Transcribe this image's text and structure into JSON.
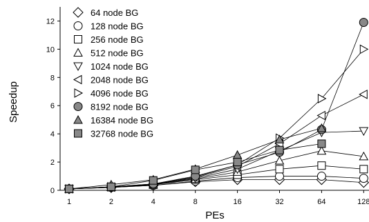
{
  "chart_data": {
    "type": "line",
    "title": "",
    "xlabel": "PEs",
    "ylabel": "Speedup",
    "x_scale": "log2",
    "x": [
      1,
      2,
      4,
      8,
      16,
      32,
      64,
      128
    ],
    "x_tick_labels": [
      "1",
      "2",
      "4",
      "8",
      "16",
      "32",
      "64",
      "128"
    ],
    "ylim": [
      0,
      13
    ],
    "y_ticks": [
      0,
      2,
      4,
      6,
      8,
      10,
      12
    ],
    "y_tick_labels": [
      "0",
      "2",
      "4",
      "6",
      "8",
      "10",
      "12"
    ],
    "grid": false,
    "legend_position": "top-left",
    "series": [
      {
        "name": "64 node BG",
        "marker": "diamond",
        "fill": "none",
        "values": [
          0.1,
          0.2,
          0.35,
          0.6,
          0.75,
          0.75,
          0.75,
          0.55
        ]
      },
      {
        "name": "128 node BG",
        "marker": "circle",
        "fill": "none",
        "values": [
          0.1,
          0.2,
          0.35,
          0.65,
          0.9,
          1.0,
          1.0,
          0.85
        ]
      },
      {
        "name": "256 node BG",
        "marker": "square",
        "fill": "none",
        "values": [
          0.1,
          0.22,
          0.4,
          0.75,
          1.1,
          1.5,
          1.75,
          1.5
        ]
      },
      {
        "name": "512 node BG",
        "marker": "triangle-up",
        "fill": "none",
        "values": [
          0.1,
          0.22,
          0.4,
          0.8,
          1.3,
          2.1,
          2.8,
          2.4
        ]
      },
      {
        "name": "1024 node BG",
        "marker": "triangle-down",
        "fill": "none",
        "values": [
          0.1,
          0.22,
          0.42,
          0.85,
          1.5,
          2.8,
          4.1,
          4.2
        ]
      },
      {
        "name": "2048 node BG",
        "marker": "triangle-left",
        "fill": "none",
        "values": [
          0.1,
          0.22,
          0.42,
          0.9,
          1.7,
          3.3,
          5.3,
          6.8
        ]
      },
      {
        "name": "4096 node BG",
        "marker": "triangle-right",
        "fill": "none",
        "values": [
          0.1,
          0.25,
          0.45,
          0.95,
          1.8,
          3.7,
          6.5,
          10.0
        ]
      },
      {
        "name": "8192 node BG",
        "marker": "circle",
        "fill": "#888888",
        "values": [
          0.1,
          0.25,
          0.45,
          1.0,
          1.8,
          2.7,
          4.3,
          11.9
        ]
      },
      {
        "name": "16384 node BG",
        "marker": "triangle-up",
        "fill": "#888888",
        "values": [
          0.1,
          0.4,
          0.75,
          1.5,
          2.5,
          3.6,
          4.4,
          null
        ]
      },
      {
        "name": "32768 node BG",
        "marker": "square",
        "fill": "#888888",
        "values": [
          0.1,
          0.25,
          0.7,
          1.45,
          2.0,
          2.85,
          3.3,
          null
        ]
      }
    ]
  }
}
